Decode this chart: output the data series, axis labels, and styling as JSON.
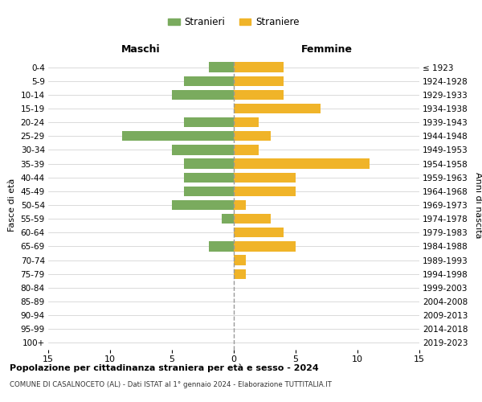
{
  "age_groups": [
    "0-4",
    "5-9",
    "10-14",
    "15-19",
    "20-24",
    "25-29",
    "30-34",
    "35-39",
    "40-44",
    "45-49",
    "50-54",
    "55-59",
    "60-64",
    "65-69",
    "70-74",
    "75-79",
    "80-84",
    "85-89",
    "90-94",
    "95-99",
    "100+"
  ],
  "birth_years": [
    "2019-2023",
    "2014-2018",
    "2009-2013",
    "2004-2008",
    "1999-2003",
    "1994-1998",
    "1989-1993",
    "1984-1988",
    "1979-1983",
    "1974-1978",
    "1969-1973",
    "1964-1968",
    "1959-1963",
    "1954-1958",
    "1949-1953",
    "1944-1948",
    "1939-1943",
    "1934-1938",
    "1929-1933",
    "1924-1928",
    "≤ 1923"
  ],
  "maschi": [
    2,
    4,
    5,
    0,
    4,
    9,
    5,
    4,
    4,
    4,
    5,
    1,
    0,
    2,
    0,
    0,
    0,
    0,
    0,
    0,
    0
  ],
  "femmine": [
    4,
    4,
    4,
    7,
    2,
    3,
    2,
    11,
    5,
    5,
    1,
    3,
    4,
    5,
    1,
    1,
    0,
    0,
    0,
    0,
    0
  ],
  "maschi_color": "#7aab5e",
  "femmine_color": "#f0b429",
  "title": "Popolazione per cittadinanza straniera per età e sesso - 2024",
  "subtitle": "COMUNE DI CASALNOCETO (AL) - Dati ISTAT al 1° gennaio 2024 - Elaborazione TUTTITALIA.IT",
  "ylabel_left": "Fasce di età",
  "ylabel_right": "Anni di nascita",
  "xlabel_maschi": "Maschi",
  "xlabel_femmine": "Femmine",
  "legend_stranieri": "Stranieri",
  "legend_straniere": "Straniere",
  "xlim": 15,
  "background_color": "#ffffff",
  "grid_color": "#cccccc",
  "dashed_line_color": "#999999"
}
